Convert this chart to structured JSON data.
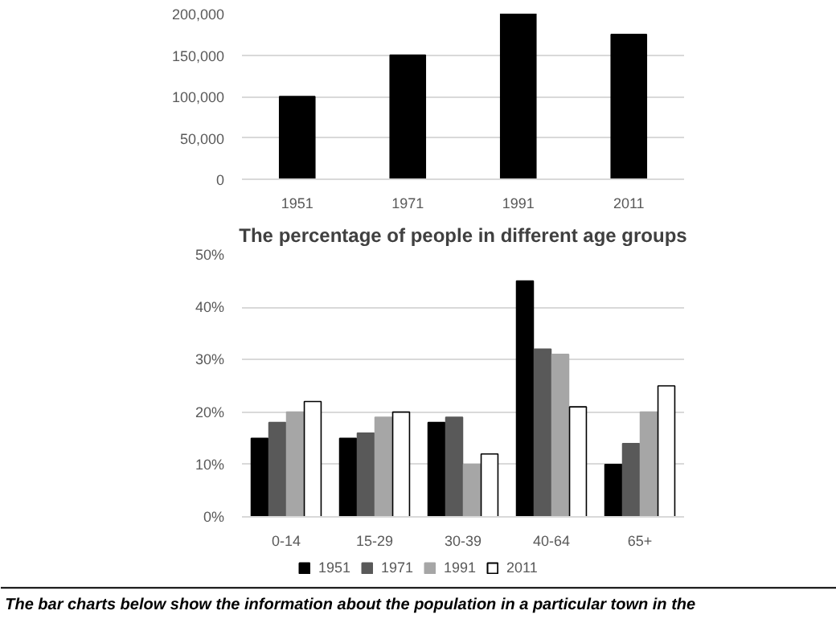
{
  "chart_data": [
    {
      "type": "bar",
      "categories": [
        "1951",
        "1971",
        "1991",
        "2011"
      ],
      "values": [
        100000,
        150000,
        200000,
        175000
      ],
      "color": "#000000",
      "ylim": [
        0,
        200000
      ],
      "yticks": [
        {
          "value": 0,
          "label": "0"
        },
        {
          "value": 50000,
          "label": "50,000"
        },
        {
          "value": 100000,
          "label": "100,000"
        },
        {
          "value": 150000,
          "label": "150,000"
        },
        {
          "value": 200000,
          "label": "200,000"
        }
      ],
      "grid": "y",
      "legend": false
    },
    {
      "type": "bar",
      "title": "The percentage of people in different age groups",
      "categories": [
        "0-14",
        "15-29",
        "30-39",
        "40-64",
        "65+"
      ],
      "series": [
        {
          "name": "1951",
          "color": "#000000",
          "values": [
            15,
            15,
            18,
            45,
            10
          ]
        },
        {
          "name": "1971",
          "color": "#595959",
          "values": [
            18,
            16,
            19,
            32,
            14
          ]
        },
        {
          "name": "1991",
          "color": "#a6a6a6",
          "values": [
            20,
            19,
            10,
            31,
            20
          ]
        },
        {
          "name": "2011",
          "color": "#ffffff",
          "values": [
            22,
            20,
            12,
            21,
            25
          ]
        }
      ],
      "ylim": [
        0,
        50
      ],
      "yticks": [
        {
          "value": 0,
          "label": "0%"
        },
        {
          "value": 10,
          "label": "10%"
        },
        {
          "value": 20,
          "label": "20%"
        },
        {
          "value": 30,
          "label": "30%"
        },
        {
          "value": 40,
          "label": "40%"
        },
        {
          "value": 50,
          "label": "50%"
        }
      ],
      "grid": "y",
      "legend": "bottom",
      "annotations": [
        "The bar charts below show the information about the population in a particular town in the"
      ]
    }
  ]
}
